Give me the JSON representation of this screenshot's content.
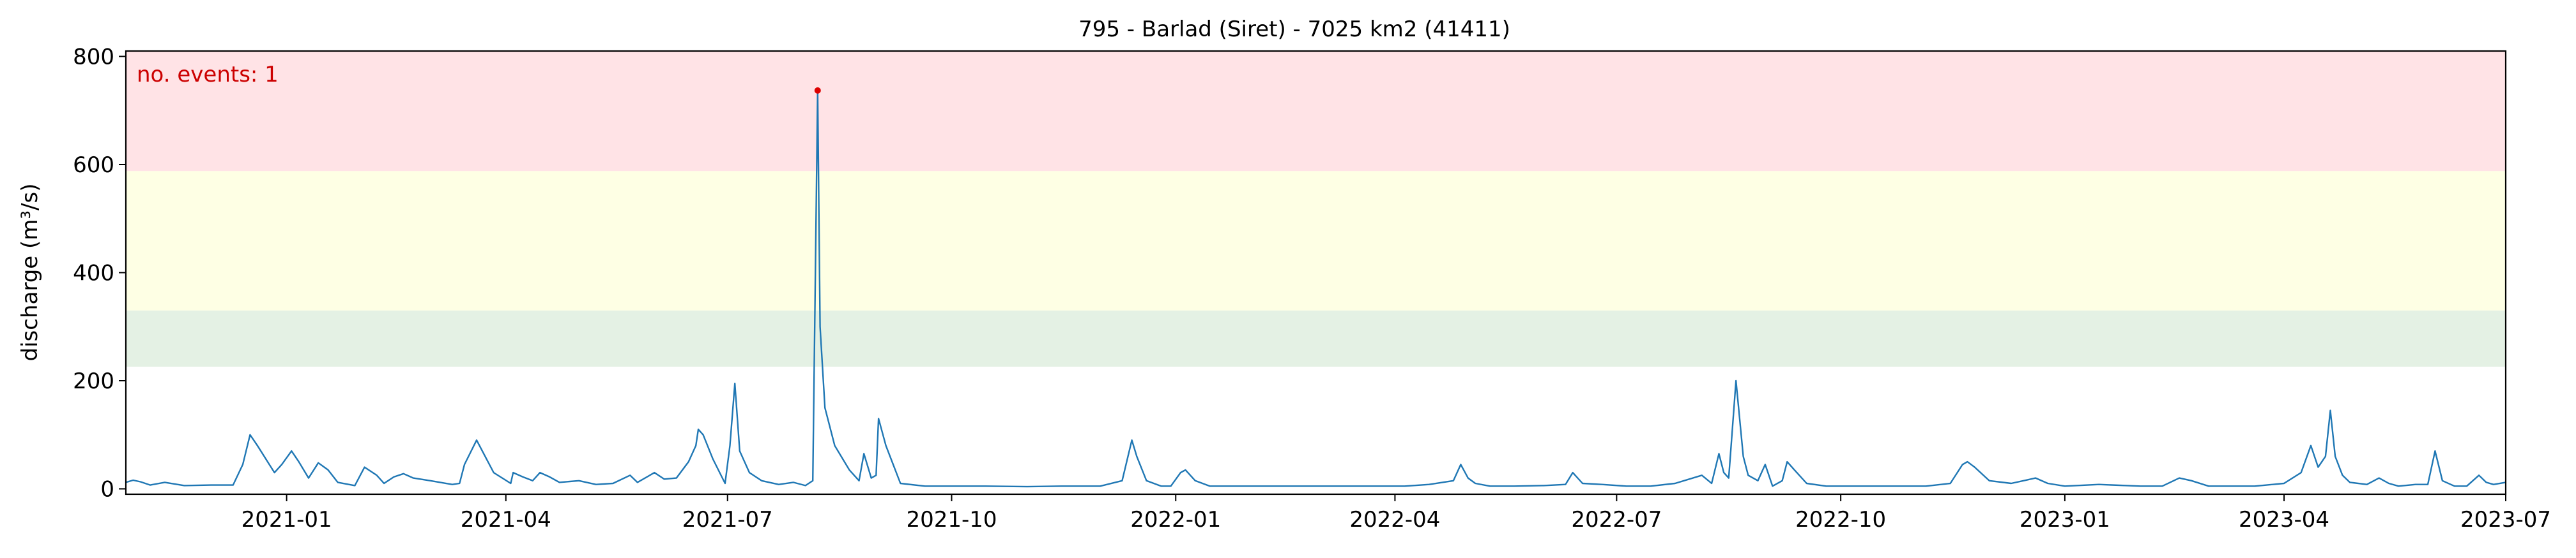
{
  "chart_data": {
    "type": "line",
    "title": "795 - Barlad (Siret) - 7025 km2 (41411)",
    "xlabel": "",
    "ylabel": "discharge (m³/s)",
    "xlim": [
      "2020-10-27",
      "2023-07-01"
    ],
    "ylim": [
      -10,
      810
    ],
    "x_ticks": [
      "2021-01",
      "2021-04",
      "2021-07",
      "2021-10",
      "2022-01",
      "2022-04",
      "2022-07",
      "2022-10",
      "2023-01",
      "2023-04",
      "2023-07"
    ],
    "x_tick_dates": [
      "2021-01-01",
      "2021-04-01",
      "2021-07-01",
      "2021-10-01",
      "2022-01-01",
      "2022-04-01",
      "2022-07-01",
      "2022-10-01",
      "2023-01-01",
      "2023-04-01",
      "2023-07-01"
    ],
    "y_ticks": [
      0,
      200,
      400,
      600,
      800
    ],
    "grid": false,
    "threshold_bands": [
      {
        "y0": 226,
        "y1": 330,
        "color": "#e4f1e4"
      },
      {
        "y0": 330,
        "y1": 588,
        "color": "#feffe4"
      },
      {
        "y0": 588,
        "y1": 810,
        "color": "#ffe3e6"
      }
    ],
    "annotation": {
      "text": "no. events: 1",
      "color": "#cc0000",
      "position": "top-left"
    },
    "events": [
      {
        "x": "2021-08-07",
        "y": 737,
        "color": "#dd0000"
      }
    ],
    "line_color": "#1f77b4",
    "series": [
      {
        "x": [
          "2020-10-27",
          "2020-10-30",
          "2020-11-02",
          "2020-11-06",
          "2020-11-12",
          "2020-11-20",
          "2020-12-01",
          "2020-12-10",
          "2020-12-14",
          "2020-12-17",
          "2020-12-20",
          "2020-12-27",
          "2020-12-30",
          "2021-01-03",
          "2021-01-06",
          "2021-01-10",
          "2021-01-14",
          "2021-01-18",
          "2021-01-22",
          "2021-01-29",
          "2021-02-02",
          "2021-02-07",
          "2021-02-10",
          "2021-02-14",
          "2021-02-18",
          "2021-02-22",
          "2021-03-01",
          "2021-03-10",
          "2021-03-13",
          "2021-03-15",
          "2021-03-20",
          "2021-03-27",
          "2021-04-03",
          "2021-04-04",
          "2021-04-08",
          "2021-04-12",
          "2021-04-15",
          "2021-04-19",
          "2021-04-23",
          "2021-05-01",
          "2021-05-08",
          "2021-05-15",
          "2021-05-22",
          "2021-05-25",
          "2021-06-01",
          "2021-06-05",
          "2021-06-10",
          "2021-06-15",
          "2021-06-18",
          "2021-06-19",
          "2021-06-21",
          "2021-06-25",
          "2021-06-30",
          "2021-07-02",
          "2021-07-04",
          "2021-07-06",
          "2021-07-10",
          "2021-07-15",
          "2021-07-22",
          "2021-07-28",
          "2021-08-02",
          "2021-08-05",
          "2021-08-07",
          "2021-08-08",
          "2021-08-10",
          "2021-08-14",
          "2021-08-20",
          "2021-08-24",
          "2021-08-26",
          "2021-08-29",
          "2021-08-31",
          "2021-09-01",
          "2021-09-04",
          "2021-09-10",
          "2021-09-20",
          "2021-10-01",
          "2021-10-15",
          "2021-11-01",
          "2021-11-15",
          "2021-11-25",
          "2021-12-01",
          "2021-12-10",
          "2021-12-14",
          "2021-12-16",
          "2021-12-20",
          "2021-12-26",
          "2021-12-30",
          "2022-01-03",
          "2022-01-05",
          "2022-01-09",
          "2022-01-15",
          "2022-01-25",
          "2022-02-10",
          "2022-03-01",
          "2022-03-20",
          "2022-04-05",
          "2022-04-15",
          "2022-04-25",
          "2022-04-28",
          "2022-05-01",
          "2022-05-04",
          "2022-05-10",
          "2022-05-20",
          "2022-06-01",
          "2022-06-10",
          "2022-06-13",
          "2022-06-17",
          "2022-06-25",
          "2022-07-05",
          "2022-07-15",
          "2022-07-25",
          "2022-08-05",
          "2022-08-09",
          "2022-08-12",
          "2022-08-14",
          "2022-08-16",
          "2022-08-19",
          "2022-08-22",
          "2022-08-24",
          "2022-08-28",
          "2022-08-31",
          "2022-09-03",
          "2022-09-07",
          "2022-09-09",
          "2022-09-12",
          "2022-09-17",
          "2022-09-25",
          "2022-10-10",
          "2022-10-25",
          "2022-11-05",
          "2022-11-15",
          "2022-11-20",
          "2022-11-22",
          "2022-11-25",
          "2022-12-01",
          "2022-12-10",
          "2022-12-20",
          "2022-12-25",
          "2023-01-01",
          "2023-01-15",
          "2023-02-01",
          "2023-02-10",
          "2023-02-17",
          "2023-02-22",
          "2023-03-01",
          "2023-03-10",
          "2023-03-20",
          "2023-04-01",
          "2023-04-08",
          "2023-04-12",
          "2023-04-15",
          "2023-04-18",
          "2023-04-20",
          "2023-04-22",
          "2023-04-25",
          "2023-04-28",
          "2023-05-05",
          "2023-05-10",
          "2023-05-14",
          "2023-05-18",
          "2023-05-25",
          "2023-05-30",
          "2023-06-02",
          "2023-06-05",
          "2023-06-10",
          "2023-06-15",
          "2023-06-20",
          "2023-06-23",
          "2023-06-26",
          "2023-07-01"
        ],
        "y": [
          12,
          16,
          13,
          7,
          12,
          6,
          7,
          7,
          45,
          100,
          80,
          30,
          45,
          70,
          50,
          20,
          48,
          35,
          12,
          6,
          40,
          25,
          10,
          22,
          28,
          20,
          15,
          8,
          10,
          45,
          90,
          30,
          10,
          30,
          22,
          15,
          30,
          22,
          12,
          15,
          8,
          10,
          25,
          12,
          30,
          18,
          20,
          50,
          80,
          110,
          100,
          55,
          10,
          80,
          195,
          70,
          30,
          15,
          8,
          12,
          6,
          15,
          737,
          300,
          150,
          80,
          35,
          15,
          65,
          20,
          25,
          130,
          80,
          10,
          5,
          5,
          5,
          4,
          5,
          5,
          5,
          15,
          90,
          60,
          15,
          5,
          5,
          30,
          35,
          15,
          5,
          5,
          5,
          5,
          5,
          5,
          8,
          15,
          45,
          20,
          10,
          5,
          5,
          6,
          8,
          30,
          10,
          8,
          5,
          5,
          10,
          25,
          10,
          65,
          30,
          20,
          200,
          60,
          25,
          15,
          45,
          5,
          15,
          50,
          35,
          10,
          5,
          5,
          5,
          5,
          10,
          45,
          50,
          40,
          15,
          10,
          20,
          10,
          5,
          8,
          5,
          5,
          20,
          15,
          5,
          5,
          5,
          10,
          30,
          80,
          40,
          60,
          145,
          60,
          25,
          12,
          8,
          20,
          10,
          5,
          8,
          8,
          70,
          15,
          5,
          5,
          25,
          12,
          8,
          12
        ]
      }
    ]
  }
}
